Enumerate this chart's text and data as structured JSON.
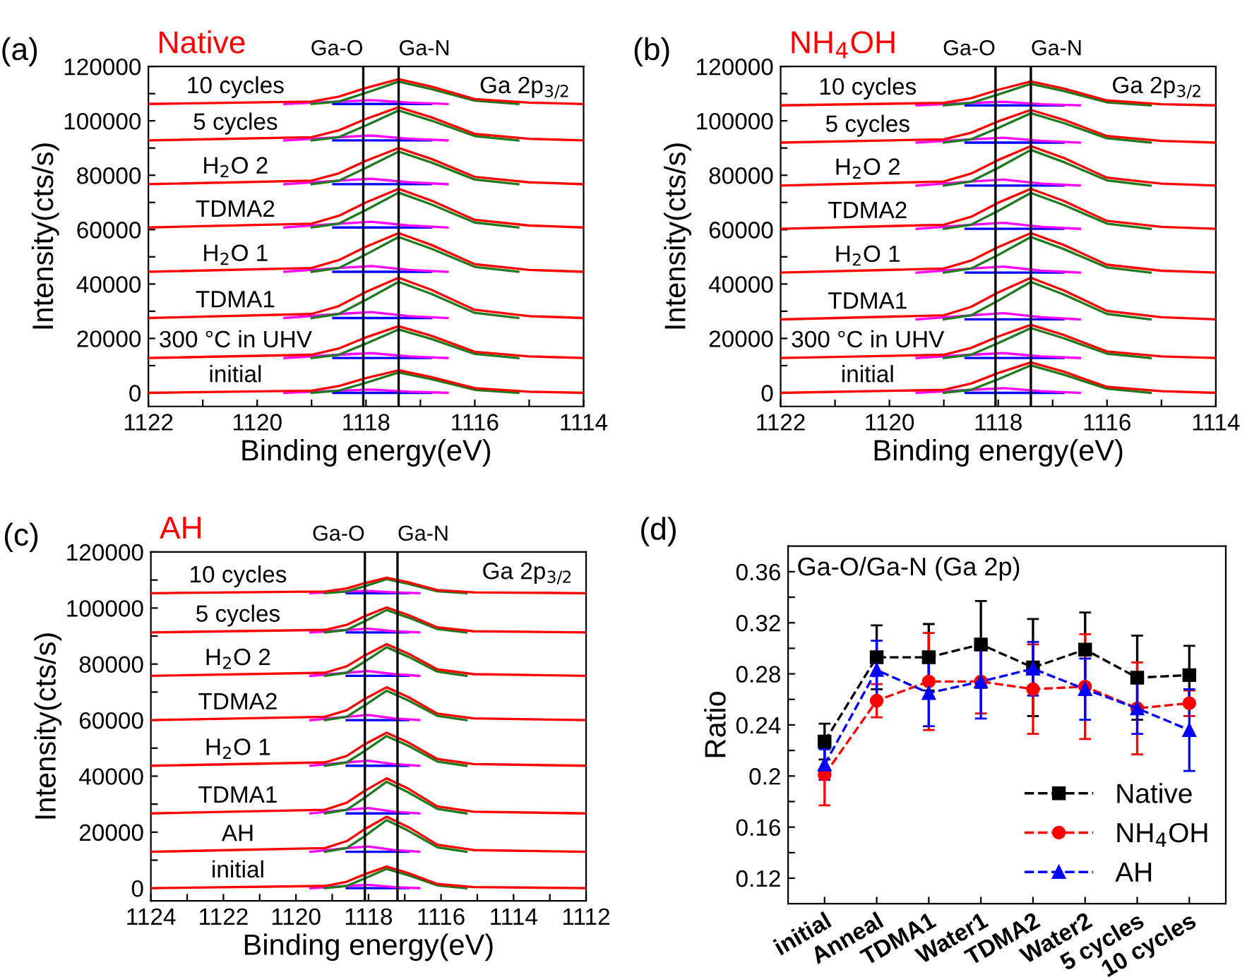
{
  "chart_data": [
    {
      "type": "line",
      "title": "(a)",
      "subtitle": "Native",
      "xlabel": "Binding energy(eV)",
      "ylabel": "Intensity(cts/s)",
      "xlim": [
        1122,
        1114
      ],
      "xticks": [
        1122,
        {
          "value": 1121,
          "label": null
        },
        1120,
        {
          "value": 1119,
          "label": null
        },
        1118,
        {
          "value": 1117,
          "label": null
        },
        1116,
        {
          "value": 1115,
          "label": null
        },
        1114
      ],
      "ylim": [
        -5000,
        120000
      ],
      "yticks": [
        0,
        {
          "value": 10000,
          "label": null
        },
        20000,
        {
          "value": 30000,
          "label": null
        },
        40000,
        {
          "value": 50000,
          "label": null
        },
        60000,
        {
          "value": 70000,
          "label": null
        },
        80000,
        {
          "value": 90000,
          "label": null
        },
        100000,
        {
          "value": 110000,
          "label": null
        },
        120000
      ],
      "x": [
        1122,
        1119,
        1118.5,
        1118,
        1117.4,
        1116.8,
        1116,
        1115,
        1114
      ],
      "ref_lines": [
        {
          "axis": "x",
          "value": 1118.05,
          "label": "Ga-O",
          "color": "#000000"
        },
        {
          "axis": "x",
          "value": 1117.4,
          "label": "Ga-N",
          "color": "#000000"
        }
      ],
      "annotations": [
        "Ga 2p$_{3/2}$"
      ],
      "series": [
        {
          "color": "#0000ff",
          "x": [
            1118.6,
            1116.8
          ],
          "values": [
            0,
            0
          ]
        },
        {
          "color": "#ff00ff",
          "x": [
            1119.5,
            1118.5,
            1117.9,
            1117.2,
            1116.5
          ],
          "values": [
            0,
            800,
            1200,
            400,
            0
          ]
        },
        {
          "color": "#1f7a1f",
          "x": [
            1119,
            1118.5,
            1118,
            1117.4,
            1116.8,
            1116,
            1115.2
          ],
          "values": [
            0,
            800,
            3700,
            7500,
            5000,
            1100,
            0
          ]
        },
        {
          "name": "initial",
          "color": "#ff0000",
          "values": [
            0,
            800,
            2500,
            5400,
            8300,
            5800,
            1700,
            400,
            0
          ]
        },
        {
          "color": "#0000ff",
          "x": [
            1118.6,
            1116.8
          ],
          "values": [
            12800,
            12800
          ]
        },
        {
          "color": "#ff00ff",
          "x": [
            1119.5,
            1118.5,
            1117.9,
            1117.2,
            1116.5
          ],
          "values": [
            12800,
            14000,
            14600,
            13400,
            12800
          ]
        },
        {
          "color": "#1f7a1f",
          "x": [
            1119,
            1118.5,
            1118,
            1117.4,
            1116.8,
            1116,
            1115.2
          ],
          "values": [
            12800,
            14000,
            18100,
            23300,
            19800,
            14300,
            12800
          ]
        },
        {
          "name": "300 °C in UHV",
          "color": "#ff0000",
          "values": [
            12800,
            14000,
            16300,
            20400,
            24500,
            21000,
            15100,
            13400,
            12800
          ]
        },
        {
          "color": "#0000ff",
          "x": [
            1118.6,
            1116.8
          ],
          "values": [
            27500,
            27500
          ]
        },
        {
          "color": "#ff00ff",
          "x": [
            1119.5,
            1118.5,
            1117.9,
            1117.2,
            1116.5
          ],
          "values": [
            27500,
            29000,
            29700,
            28200,
            27500
          ]
        },
        {
          "color": "#1f7a1f",
          "x": [
            1119,
            1118.5,
            1118,
            1117.4,
            1116.8,
            1116,
            1115.2
          ],
          "values": [
            27500,
            29000,
            34200,
            40800,
            36400,
            29400,
            27500
          ]
        },
        {
          "name": "TDMA1",
          "color": "#ff0000",
          "values": [
            27500,
            29000,
            31900,
            37100,
            42300,
            37900,
            30500,
            28200,
            27500
          ]
        },
        {
          "color": "#0000ff",
          "x": [
            1118.6,
            1116.8
          ],
          "values": [
            44500,
            44500
          ]
        },
        {
          "color": "#ff00ff",
          "x": [
            1119.5,
            1118.5,
            1117.9,
            1117.2,
            1116.5
          ],
          "values": [
            44500,
            45900,
            46600,
            45200,
            44500
          ]
        },
        {
          "color": "#1f7a1f",
          "x": [
            1119,
            1118.5,
            1118,
            1117.4,
            1116.8,
            1116,
            1115.2
          ],
          "values": [
            44500,
            45900,
            50900,
            57300,
            53000,
            46300,
            44500
          ]
        },
        {
          "name": "H$_{2}$O 1",
          "color": "#ff0000",
          "values": [
            44500,
            45900,
            48800,
            53700,
            58700,
            54400,
            47300,
            45200,
            44500
          ]
        },
        {
          "color": "#0000ff",
          "x": [
            1118.6,
            1116.8
          ],
          "values": [
            60800,
            60800
          ]
        },
        {
          "color": "#ff00ff",
          "x": [
            1119.5,
            1118.5,
            1117.9,
            1117.2,
            1116.5
          ],
          "values": [
            60800,
            62200,
            62900,
            61500,
            60800
          ]
        },
        {
          "color": "#1f7a1f",
          "x": [
            1119,
            1118.5,
            1118,
            1117.4,
            1116.8,
            1116,
            1115.2
          ],
          "values": [
            60800,
            62200,
            67200,
            73600,
            69300,
            62600,
            60800
          ]
        },
        {
          "name": "TDMA2",
          "color": "#ff0000",
          "values": [
            60800,
            62200,
            65100,
            70000,
            75000,
            70700,
            63600,
            61500,
            60800
          ]
        },
        {
          "color": "#0000ff",
          "x": [
            1118.6,
            1116.8
          ],
          "values": [
            76700,
            76700
          ]
        },
        {
          "color": "#ff00ff",
          "x": [
            1119.5,
            1118.5,
            1117.9,
            1117.2,
            1116.5
          ],
          "values": [
            76700,
            78000,
            78700,
            77400,
            76700
          ]
        },
        {
          "color": "#1f7a1f",
          "x": [
            1119,
            1118.5,
            1118,
            1117.4,
            1116.8,
            1116,
            1115.2
          ],
          "values": [
            76700,
            78000,
            82700,
            88700,
            84700,
            78400,
            76700
          ]
        },
        {
          "name": "H$_{2}$O 2",
          "color": "#ff0000",
          "values": [
            76700,
            78000,
            80700,
            85300,
            90000,
            86000,
            79400,
            77400,
            76700
          ]
        },
        {
          "color": "#0000ff",
          "x": [
            1118.6,
            1116.8
          ],
          "values": [
            92800,
            92800
          ]
        },
        {
          "color": "#ff00ff",
          "x": [
            1119.5,
            1118.5,
            1117.9,
            1117.2,
            1116.5
          ],
          "values": [
            92800,
            94000,
            94600,
            93400,
            92800
          ]
        },
        {
          "color": "#1f7a1f",
          "x": [
            1119,
            1118.5,
            1118,
            1117.4,
            1116.8,
            1116,
            1115.2
          ],
          "values": [
            92800,
            94000,
            98300,
            103800,
            100100,
            94400,
            92800
          ]
        },
        {
          "name": "5 cycles",
          "color": "#ff0000",
          "values": [
            92800,
            94000,
            96500,
            100700,
            105000,
            101300,
            95200,
            93400,
            92800
          ]
        },
        {
          "color": "#0000ff",
          "x": [
            1118.6,
            1116.8
          ],
          "values": [
            106200,
            106200
          ]
        },
        {
          "color": "#ff00ff",
          "x": [
            1119.5,
            1118.5,
            1117.9,
            1117.2,
            1116.5
          ],
          "values": [
            106200,
            107100,
            107600,
            106700,
            106200
          ]
        },
        {
          "color": "#1f7a1f",
          "x": [
            1119,
            1118.5,
            1118,
            1117.4,
            1116.8,
            1116,
            1115.2
          ],
          "values": [
            106200,
            107100,
            110300,
            114400,
            111700,
            107400,
            106200
          ]
        },
        {
          "name": "10 cycles",
          "color": "#ff0000",
          "values": [
            106200,
            107100,
            108900,
            112100,
            115300,
            112600,
            108000,
            106700,
            106200
          ]
        }
      ]
    },
    {
      "type": "line",
      "title": "(b)",
      "subtitle": "NH$_{4}$OH",
      "xlabel": "Binding energy(eV)",
      "ylabel": "Intensity(cts/s)",
      "xlim": [
        1122,
        1114
      ],
      "xticks": [
        1122,
        {
          "value": 1121,
          "label": null
        },
        1120,
        {
          "value": 1119,
          "label": null
        },
        1118,
        {
          "value": 1117,
          "label": null
        },
        1116,
        {
          "value": 1115,
          "label": null
        },
        1114
      ],
      "ylim": [
        -5000,
        120000
      ],
      "yticks": [
        0,
        {
          "value": 10000,
          "label": null
        },
        20000,
        {
          "value": 30000,
          "label": null
        },
        40000,
        {
          "value": 50000,
          "label": null
        },
        60000,
        {
          "value": 70000,
          "label": null
        },
        80000,
        {
          "value": 90000,
          "label": null
        },
        100000,
        {
          "value": 110000,
          "label": null
        },
        120000
      ],
      "x": [
        1122,
        1119,
        1118.5,
        1118,
        1117.4,
        1116.8,
        1116,
        1115,
        1114
      ],
      "ref_lines": [
        {
          "axis": "x",
          "value": 1118.05,
          "label": "Ga-O",
          "color": "#000000"
        },
        {
          "axis": "x",
          "value": 1117.4,
          "label": "Ga-N",
          "color": "#000000"
        }
      ],
      "annotations": [
        "Ga 2p$_{3/2}$"
      ],
      "series": [
        {
          "color": "#0000ff",
          "x": [
            1118.6,
            1116.8
          ],
          "values": [
            0,
            0
          ]
        },
        {
          "color": "#ff00ff",
          "x": [
            1119.5,
            1118.5,
            1117.9,
            1117.2,
            1116.5
          ],
          "values": [
            0,
            1100,
            1700,
            600,
            0
          ]
        },
        {
          "color": "#1f7a1f",
          "x": [
            1119,
            1118.5,
            1118,
            1117.4,
            1116.8,
            1116,
            1115.2
          ],
          "values": [
            0,
            1100,
            5000,
            10100,
            6700,
            1500,
            0
          ]
        },
        {
          "name": "initial",
          "color": "#ff0000",
          "values": [
            0,
            1100,
            3400,
            7300,
            11200,
            7800,
            2200,
            600,
            0
          ]
        },
        {
          "color": "#0000ff",
          "x": [
            1118.6,
            1116.8
          ],
          "values": [
            12800,
            12800
          ]
        },
        {
          "color": "#ff00ff",
          "x": [
            1119.5,
            1118.5,
            1117.9,
            1117.2,
            1116.5
          ],
          "values": [
            12800,
            14000,
            14600,
            13400,
            12800
          ]
        },
        {
          "color": "#1f7a1f",
          "x": [
            1119,
            1118.5,
            1118,
            1117.4,
            1116.8,
            1116,
            1115.2
          ],
          "values": [
            12800,
            14000,
            18300,
            23800,
            20100,
            14400,
            12800
          ]
        },
        {
          "name": "300 °C in UHV",
          "color": "#ff0000",
          "values": [
            12800,
            14000,
            16500,
            20700,
            25000,
            21300,
            15200,
            13400,
            12800
          ]
        },
        {
          "color": "#0000ff",
          "x": [
            1118.6,
            1116.8
          ],
          "values": [
            27000,
            27000
          ]
        },
        {
          "color": "#ff00ff",
          "x": [
            1119.5,
            1118.5,
            1117.9,
            1117.2,
            1116.5
          ],
          "values": [
            27000,
            28500,
            29300,
            27800,
            27000
          ]
        },
        {
          "color": "#1f7a1f",
          "x": [
            1119,
            1118.5,
            1118,
            1117.4,
            1116.8,
            1116,
            1115.2
          ],
          "values": [
            27000,
            28500,
            33900,
            40800,
            36200,
            29000,
            27000
          ]
        },
        {
          "name": "TDMA1",
          "color": "#ff0000",
          "values": [
            27000,
            28500,
            31600,
            36900,
            42300,
            37700,
            30100,
            27800,
            27000
          ]
        },
        {
          "color": "#0000ff",
          "x": [
            1118.6,
            1116.8
          ],
          "values": [
            44200,
            44200
          ]
        },
        {
          "color": "#ff00ff",
          "x": [
            1119.5,
            1118.5,
            1117.9,
            1117.2,
            1116.5
          ],
          "values": [
            44200,
            45700,
            46400,
            44900,
            44200
          ]
        },
        {
          "color": "#1f7a1f",
          "x": [
            1119,
            1118.5,
            1118,
            1117.4,
            1116.8,
            1116,
            1115.2
          ],
          "values": [
            44200,
            45700,
            50700,
            57300,
            52900,
            46100,
            44200
          ]
        },
        {
          "name": "H$_{2}$O 1",
          "color": "#ff0000",
          "values": [
            44200,
            45700,
            48600,
            53600,
            58700,
            54400,
            47100,
            44900,
            44200
          ]
        },
        {
          "color": "#0000ff",
          "x": [
            1118.6,
            1116.8
          ],
          "values": [
            60300,
            60300
          ]
        },
        {
          "color": "#ff00ff",
          "x": [
            1119.5,
            1118.5,
            1117.9,
            1117.2,
            1116.5
          ],
          "values": [
            60300,
            61800,
            62500,
            61000,
            60300
          ]
        },
        {
          "color": "#1f7a1f",
          "x": [
            1119,
            1118.5,
            1118,
            1117.4,
            1116.8,
            1116,
            1115.2
          ],
          "values": [
            60300,
            61800,
            66900,
            73500,
            69100,
            62200,
            60300
          ]
        },
        {
          "name": "TDMA2",
          "color": "#ff0000",
          "values": [
            60300,
            61800,
            64700,
            69900,
            75000,
            70600,
            63200,
            61000,
            60300
          ]
        },
        {
          "color": "#0000ff",
          "x": [
            1118.6,
            1116.8
          ],
          "values": [
            76200,
            76200
          ]
        },
        {
          "color": "#ff00ff",
          "x": [
            1119.5,
            1118.5,
            1117.9,
            1117.2,
            1116.5
          ],
          "values": [
            76200,
            77700,
            78400,
            76900,
            76200
          ]
        },
        {
          "color": "#1f7a1f",
          "x": [
            1119,
            1118.5,
            1118,
            1117.4,
            1116.8,
            1116,
            1115.2
          ],
          "values": [
            76200,
            77700,
            82700,
            89300,
            84900,
            78100,
            76200
          ]
        },
        {
          "name": "H$_{2}$O 2",
          "color": "#ff0000",
          "values": [
            76200,
            77700,
            80600,
            85600,
            90700,
            86400,
            79100,
            76900,
            76200
          ]
        },
        {
          "color": "#0000ff",
          "x": [
            1118.6,
            1116.8
          ],
          "values": [
            92000,
            92000
          ]
        },
        {
          "color": "#ff00ff",
          "x": [
            1119.5,
            1118.5,
            1117.9,
            1117.2,
            1116.5
          ],
          "values": [
            92000,
            93200,
            93800,
            92600,
            92000
          ]
        },
        {
          "color": "#1f7a1f",
          "x": [
            1119,
            1118.5,
            1118,
            1117.4,
            1116.8,
            1116,
            1115.2
          ],
          "values": [
            92000,
            93200,
            97400,
            102800,
            99200,
            93600,
            92000
          ]
        },
        {
          "name": "5 cycles",
          "color": "#ff0000",
          "values": [
            92000,
            93200,
            95600,
            99800,
            104000,
            100400,
            94400,
            92600,
            92000
          ]
        },
        {
          "color": "#0000ff",
          "x": [
            1118.6,
            1116.8
          ],
          "values": [
            105700,
            105700
          ]
        },
        {
          "color": "#ff00ff",
          "x": [
            1119.5,
            1118.5,
            1117.9,
            1117.2,
            1116.5
          ],
          "values": [
            105700,
            106600,
            107000,
            106100,
            105700
          ]
        },
        {
          "color": "#1f7a1f",
          "x": [
            1119,
            1118.5,
            1118,
            1117.4,
            1116.8,
            1116,
            1115.2
          ],
          "values": [
            105700,
            106600,
            109700,
            113600,
            111000,
            106800,
            105700
          ]
        },
        {
          "name": "10 cycles",
          "color": "#ff0000",
          "values": [
            105700,
            106600,
            108300,
            111400,
            114500,
            111900,
            107500,
            106100,
            105700
          ]
        }
      ]
    },
    {
      "type": "line",
      "title": "(c)",
      "subtitle": "AH",
      "xlabel": "Binding energy(eV)",
      "ylabel": "Intensity(cts/s)",
      "xlim": [
        1124,
        1112
      ],
      "xticks": [
        1124,
        {
          "value": 1123,
          "label": null
        },
        1122,
        {
          "value": 1121,
          "label": null
        },
        1120,
        {
          "value": 1119,
          "label": null
        },
        1118,
        {
          "value": 1117,
          "label": null
        },
        1116,
        {
          "value": 1115,
          "label": null
        },
        1114,
        {
          "value": 1113,
          "label": null
        },
        1112
      ],
      "ylim": [
        -4500,
        120000
      ],
      "yticks": [
        0,
        {
          "value": 10000,
          "label": null
        },
        20000,
        {
          "value": 30000,
          "label": null
        },
        40000,
        {
          "value": 50000,
          "label": null
        },
        60000,
        {
          "value": 70000,
          "label": null
        },
        80000,
        {
          "value": 90000,
          "label": null
        },
        100000,
        {
          "value": 110000,
          "label": null
        },
        120000
      ],
      "x": [
        1124,
        1119.2,
        1118.6,
        1118.1,
        1117.5,
        1116.9,
        1116.1,
        1115.1,
        1112
      ],
      "ref_lines": [
        {
          "axis": "x",
          "value": 1118.1,
          "label": "Ga-O",
          "color": "#000000"
        },
        {
          "axis": "x",
          "value": 1117.2,
          "label": "Ga-N",
          "color": "#000000"
        }
      ],
      "annotations": [
        "Ga 2p$_{3/2}$"
      ],
      "series": [
        {
          "color": "#0000ff",
          "x": [
            1118.6,
            1116.9
          ],
          "values": [
            0,
            0
          ]
        },
        {
          "color": "#ff00ff",
          "x": [
            1119.6,
            1118.6,
            1118.0,
            1117.3,
            1116.6
          ],
          "values": [
            0,
            800,
            1200,
            400,
            0
          ]
        },
        {
          "color": "#1f7a1f",
          "x": [
            1119.2,
            1118.6,
            1118.1,
            1117.5,
            1116.9,
            1116.1,
            1115.3
          ],
          "values": [
            0,
            800,
            3500,
            6900,
            4600,
            1000,
            0
          ]
        },
        {
          "name": "initial",
          "color": "#ff0000",
          "values": [
            0,
            800,
            2300,
            5000,
            7700,
            5400,
            1500,
            400,
            0
          ]
        },
        {
          "color": "#0000ff",
          "x": [
            1118.6,
            1116.9
          ],
          "values": [
            13000,
            13000
          ]
        },
        {
          "color": "#ff00ff",
          "x": [
            1119.6,
            1118.6,
            1118.0,
            1117.3,
            1116.6
          ],
          "values": [
            13000,
            14300,
            14900,
            13600,
            13000
          ]
        },
        {
          "color": "#1f7a1f",
          "x": [
            1119.2,
            1118.6,
            1118.1,
            1117.5,
            1116.9,
            1116.1,
            1115.3
          ],
          "values": [
            13000,
            14300,
            18600,
            24300,
            20500,
            14600,
            13000
          ]
        },
        {
          "name": "AH",
          "color": "#ff0000",
          "values": [
            13000,
            14300,
            16800,
            21100,
            25500,
            21800,
            15500,
            13600,
            13000
          ]
        },
        {
          "color": "#0000ff",
          "x": [
            1118.6,
            1116.9
          ],
          "values": [
            26700,
            26700
          ]
        },
        {
          "color": "#ff00ff",
          "x": [
            1119.6,
            1118.6,
            1118.0,
            1117.3,
            1116.6
          ],
          "values": [
            26700,
            28000,
            28600,
            27300,
            26700
          ]
        },
        {
          "color": "#1f7a1f",
          "x": [
            1119.2,
            1118.6,
            1118.1,
            1117.5,
            1116.9,
            1116.1,
            1115.3
          ],
          "values": [
            26700,
            28000,
            32300,
            38000,
            34200,
            28300,
            26700
          ]
        },
        {
          "name": "TDMA1",
          "color": "#ff0000",
          "values": [
            26700,
            28000,
            30500,
            34800,
            39200,
            35500,
            29200,
            27300,
            26700
          ]
        },
        {
          "color": "#0000ff",
          "x": [
            1118.6,
            1116.9
          ],
          "values": [
            43700,
            43700
          ]
        },
        {
          "color": "#ff00ff",
          "x": [
            1119.6,
            1118.6,
            1118.0,
            1117.3,
            1116.6
          ],
          "values": [
            43700,
            44900,
            45500,
            44300,
            43700
          ]
        },
        {
          "color": "#1f7a1f",
          "x": [
            1119.2,
            1118.6,
            1118.1,
            1117.5,
            1116.9,
            1116.1,
            1115.3
          ],
          "values": [
            43700,
            44900,
            49000,
            54300,
            50800,
            45200,
            43700
          ]
        },
        {
          "name": "H$_{2}$O 1",
          "color": "#ff0000",
          "values": [
            43700,
            44900,
            47200,
            51400,
            55500,
            52000,
            46100,
            44300,
            43700
          ]
        },
        {
          "color": "#0000ff",
          "x": [
            1118.6,
            1116.9
          ],
          "values": [
            60000,
            60000
          ]
        },
        {
          "color": "#ff00ff",
          "x": [
            1119.6,
            1118.6,
            1118.0,
            1117.3,
            1116.6
          ],
          "values": [
            60000,
            61200,
            61800,
            60600,
            60000
          ]
        },
        {
          "color": "#1f7a1f",
          "x": [
            1119.2,
            1118.6,
            1118.1,
            1117.5,
            1116.9,
            1116.1,
            1115.3
          ],
          "values": [
            60000,
            61200,
            65300,
            70500,
            67000,
            61500,
            60000
          ]
        },
        {
          "name": "TDMA2",
          "color": "#ff0000",
          "values": [
            60000,
            61200,
            63500,
            67600,
            71700,
            68200,
            62300,
            60600,
            60000
          ]
        },
        {
          "color": "#0000ff",
          "x": [
            1118.6,
            1116.9
          ],
          "values": [
            75800,
            75800
          ]
        },
        {
          "color": "#ff00ff",
          "x": [
            1119.6,
            1118.6,
            1118.0,
            1117.3,
            1116.6
          ],
          "values": [
            75800,
            76900,
            77500,
            76400,
            75800
          ]
        },
        {
          "color": "#1f7a1f",
          "x": [
            1119.2,
            1118.6,
            1118.1,
            1117.5,
            1116.9,
            1116.1,
            1115.3
          ],
          "values": [
            75800,
            76900,
            80900,
            86000,
            82600,
            77300,
            75800
          ]
        },
        {
          "name": "H$_{2}$O 2",
          "color": "#ff0000",
          "values": [
            75800,
            76900,
            79200,
            83100,
            87100,
            83700,
            78100,
            76400,
            75800
          ]
        },
        {
          "color": "#0000ff",
          "x": [
            1118.6,
            1116.9
          ],
          "values": [
            91300,
            91300
          ]
        },
        {
          "color": "#ff00ff",
          "x": [
            1119.6,
            1118.6,
            1118.0,
            1117.3,
            1116.6
          ],
          "values": [
            91300,
            92200,
            92600,
            91700,
            91300
          ]
        },
        {
          "color": "#1f7a1f",
          "x": [
            1119.2,
            1118.6,
            1118.1,
            1117.5,
            1116.9,
            1116.1,
            1115.3
          ],
          "values": [
            91300,
            92200,
            95300,
            99300,
            96600,
            92500,
            91300
          ]
        },
        {
          "name": "5 cycles",
          "color": "#ff0000",
          "values": [
            91300,
            92200,
            94000,
            97100,
            100200,
            97500,
            93100,
            91700,
            91300
          ]
        },
        {
          "color": "#0000ff",
          "x": [
            1118.6,
            1116.9
          ],
          "values": [
            105300,
            105300
          ]
        },
        {
          "color": "#ff00ff",
          "x": [
            1119.6,
            1118.6,
            1118.0,
            1117.3,
            1116.6
          ],
          "values": [
            105300,
            105900,
            106100,
            105600,
            105300
          ]
        },
        {
          "color": "#1f7a1f",
          "x": [
            1119.2,
            1118.6,
            1118.1,
            1117.5,
            1116.9,
            1116.1,
            1115.3
          ],
          "values": [
            105300,
            105900,
            107800,
            110300,
            108600,
            106000,
            105300
          ]
        },
        {
          "name": "10 cycles",
          "color": "#ff0000",
          "values": [
            105300,
            105900,
            107000,
            108900,
            110800,
            109200,
            106400,
            105600,
            105300
          ]
        }
      ]
    },
    {
      "type": "line",
      "title": "(d)",
      "ylabel": "Ratio",
      "annotations": [
        "Ga-O/Ga-N (Ga 2p)"
      ],
      "categories": [
        "initial",
        "Anneal",
        "TDMA1",
        "Water1",
        "TDMA2",
        "Water2",
        "5 cycles",
        "10 cycles"
      ],
      "ylim": [
        0.1,
        0.38
      ],
      "yticks": [
        0.12,
        {
          "value": 0.14,
          "label": null
        },
        0.16,
        {
          "value": 0.18,
          "label": null
        },
        0.2,
        {
          "value": 0.22,
          "label": null
        },
        0.24,
        {
          "value": 0.26,
          "label": null
        },
        0.28,
        {
          "value": 0.3,
          "label": null
        },
        0.32,
        {
          "value": 0.34,
          "label": null
        },
        0.36
      ],
      "line_style": "dashed",
      "legend": "bottom right",
      "series": [
        {
          "name": "Native",
          "color": "#000000",
          "marker": "square",
          "values": [
            0.227,
            0.293,
            0.293,
            0.303,
            0.285,
            0.299,
            0.277,
            0.279
          ],
          "errors": [
            0.014,
            0.025,
            0.026,
            0.034,
            0.038,
            0.029,
            0.033,
            0.023
          ]
        },
        {
          "name": "NH$_{4}$OH",
          "color": "#ff0000",
          "marker": "circle",
          "values": [
            0.201,
            0.259,
            0.274,
            0.274,
            0.268,
            0.27,
            0.253,
            0.257
          ],
          "errors": [
            0.024,
            0.013,
            0.038,
            0.025,
            0.035,
            0.041,
            0.036,
            0.01
          ]
        },
        {
          "name": "AH",
          "color": "#0000ff",
          "marker": "triangle",
          "values": [
            0.209,
            0.283,
            0.265,
            0.274,
            0.284,
            0.268,
            0.253,
            0.236
          ],
          "errors": [
            0.012,
            0.023,
            0.026,
            0.029,
            0.021,
            0.024,
            0.02,
            0.032
          ]
        }
      ]
    }
  ]
}
